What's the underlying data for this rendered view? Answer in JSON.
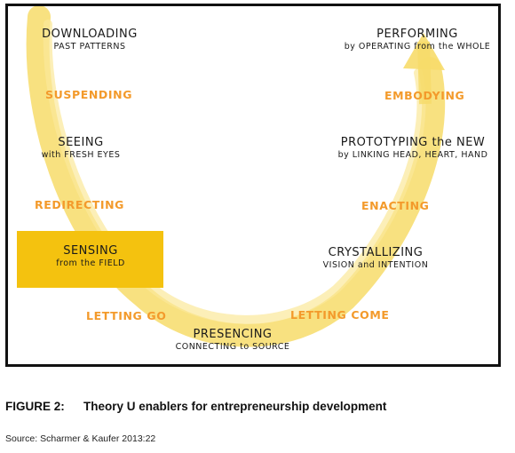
{
  "diagram": {
    "left_nodes": [
      {
        "main": "DOWNLOADING",
        "sub": "PAST PATTERNS"
      },
      {
        "main": "SEEING",
        "sub": "with FRESH EYES"
      },
      {
        "main": "SENSING",
        "sub": "from the FIELD"
      }
    ],
    "bottom_node": {
      "main": "PRESENCING",
      "sub": "CONNECTING to SOURCE"
    },
    "right_nodes": [
      {
        "main": "CRYSTALLIZING",
        "sub": "VISION and INTENTION"
      },
      {
        "main": "PROTOTYPING the NEW",
        "sub": "by LINKING HEAD, HEART, HAND"
      },
      {
        "main": "PERFORMING",
        "sub": "by OPERATING from the WHOLE"
      }
    ],
    "enablers": {
      "suspending": "SUSPENDING",
      "redirecting": "REDIRECTING",
      "letting_go": "LETTING GO",
      "letting_come": "LETTING COME",
      "enacting": "ENACTING",
      "embodying": "EMBODYING"
    },
    "colors": {
      "arrow": "#f7dc6a",
      "enabler_text": "#f39a2b",
      "highlight": "#f4c20f"
    }
  },
  "caption": {
    "label": "FIGURE 2:",
    "title": "Theory U enablers for entrepreneurship development"
  },
  "source": "Source: Scharmer & Kaufer 2013:22"
}
